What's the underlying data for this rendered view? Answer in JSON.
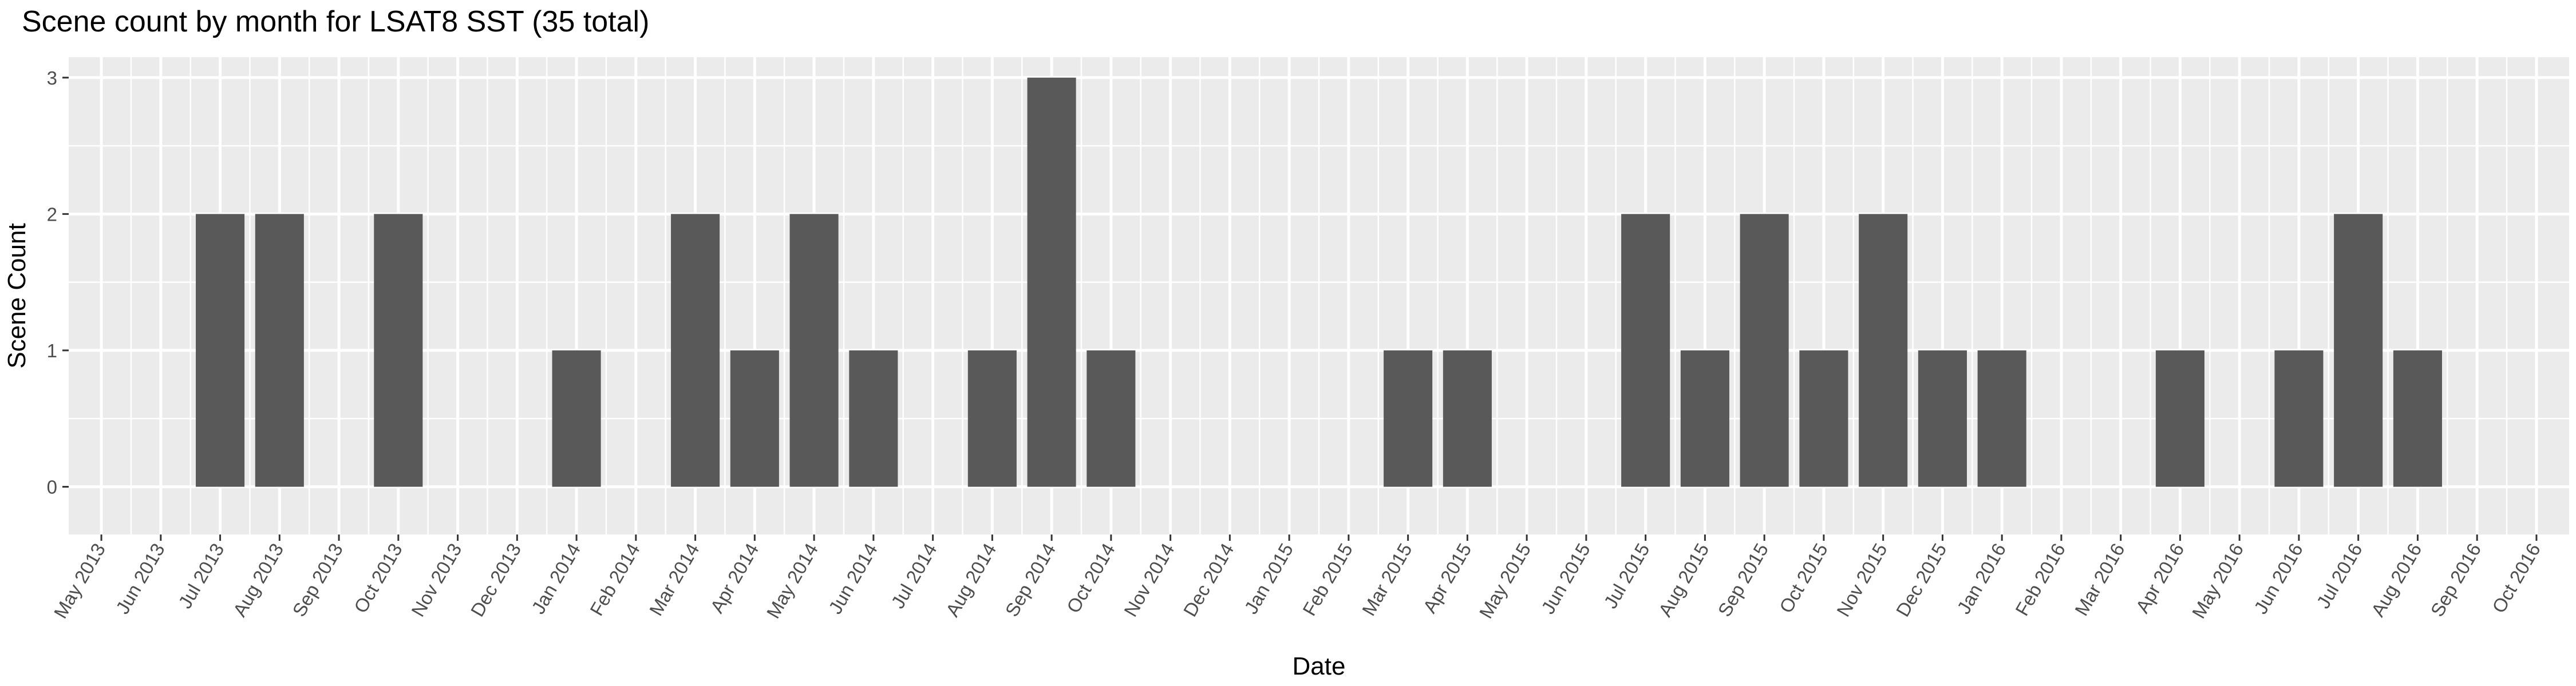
{
  "chart_data": {
    "type": "bar",
    "title": "Scene count by month for LSAT8 SST (35 total)",
    "xlabel": "Date",
    "ylabel": "Scene Count",
    "ylim": [
      -0.35,
      3.15
    ],
    "yticks": [
      0,
      1,
      2,
      3
    ],
    "grid": true,
    "legend": "none",
    "colors": {
      "bar": "#595959",
      "panel": "#ebebeb",
      "grid": "#ffffff"
    },
    "months": [
      "May 2013",
      "Jun 2013",
      "Jul 2013",
      "Aug 2013",
      "Sep 2013",
      "Oct 2013",
      "Nov 2013",
      "Dec 2013",
      "Jan 2014",
      "Feb 2014",
      "Mar 2014",
      "Apr 2014",
      "May 2014",
      "Jun 2014",
      "Jul 2014",
      "Aug 2014",
      "Sep 2014",
      "Oct 2014",
      "Nov 2014",
      "Dec 2014",
      "Jan 2015",
      "Feb 2015",
      "Mar 2015",
      "Apr 2015",
      "May 2015",
      "Jun 2015",
      "Jul 2015",
      "Aug 2015",
      "Sep 2015",
      "Oct 2015",
      "Nov 2015",
      "Dec 2015",
      "Jan 2016",
      "Feb 2016",
      "Mar 2016",
      "Apr 2016",
      "May 2016",
      "Jun 2016",
      "Jul 2016",
      "Aug 2016",
      "Sep 2016",
      "Oct 2016"
    ],
    "bars": [
      {
        "month": "Jul 2013",
        "value": 2
      },
      {
        "month": "Aug 2013",
        "value": 2
      },
      {
        "month": "Oct 2013",
        "value": 2
      },
      {
        "month": "Jan 2014",
        "value": 1
      },
      {
        "month": "Mar 2014",
        "value": 2
      },
      {
        "month": "Apr 2014",
        "value": 1
      },
      {
        "month": "May 2014",
        "value": 2
      },
      {
        "month": "Jun 2014",
        "value": 1
      },
      {
        "month": "Aug 2014",
        "value": 1
      },
      {
        "month": "Sep 2014",
        "value": 3
      },
      {
        "month": "Oct 2014",
        "value": 1
      },
      {
        "month": "Mar 2015",
        "value": 1
      },
      {
        "month": "Apr 2015",
        "value": 1
      },
      {
        "month": "Jul 2015",
        "value": 2
      },
      {
        "month": "Aug 2015",
        "value": 1
      },
      {
        "month": "Sep 2015",
        "value": 2
      },
      {
        "month": "Oct 2015",
        "value": 1
      },
      {
        "month": "Nov 2015",
        "value": 2
      },
      {
        "month": "Dec 2015",
        "value": 1
      },
      {
        "month": "Jan 2016",
        "value": 1
      },
      {
        "month": "Apr 2016",
        "value": 1
      },
      {
        "month": "Jun 2016",
        "value": 1
      },
      {
        "month": "Jul 2016",
        "value": 2
      },
      {
        "month": "Aug 2016",
        "value": 1
      }
    ]
  }
}
